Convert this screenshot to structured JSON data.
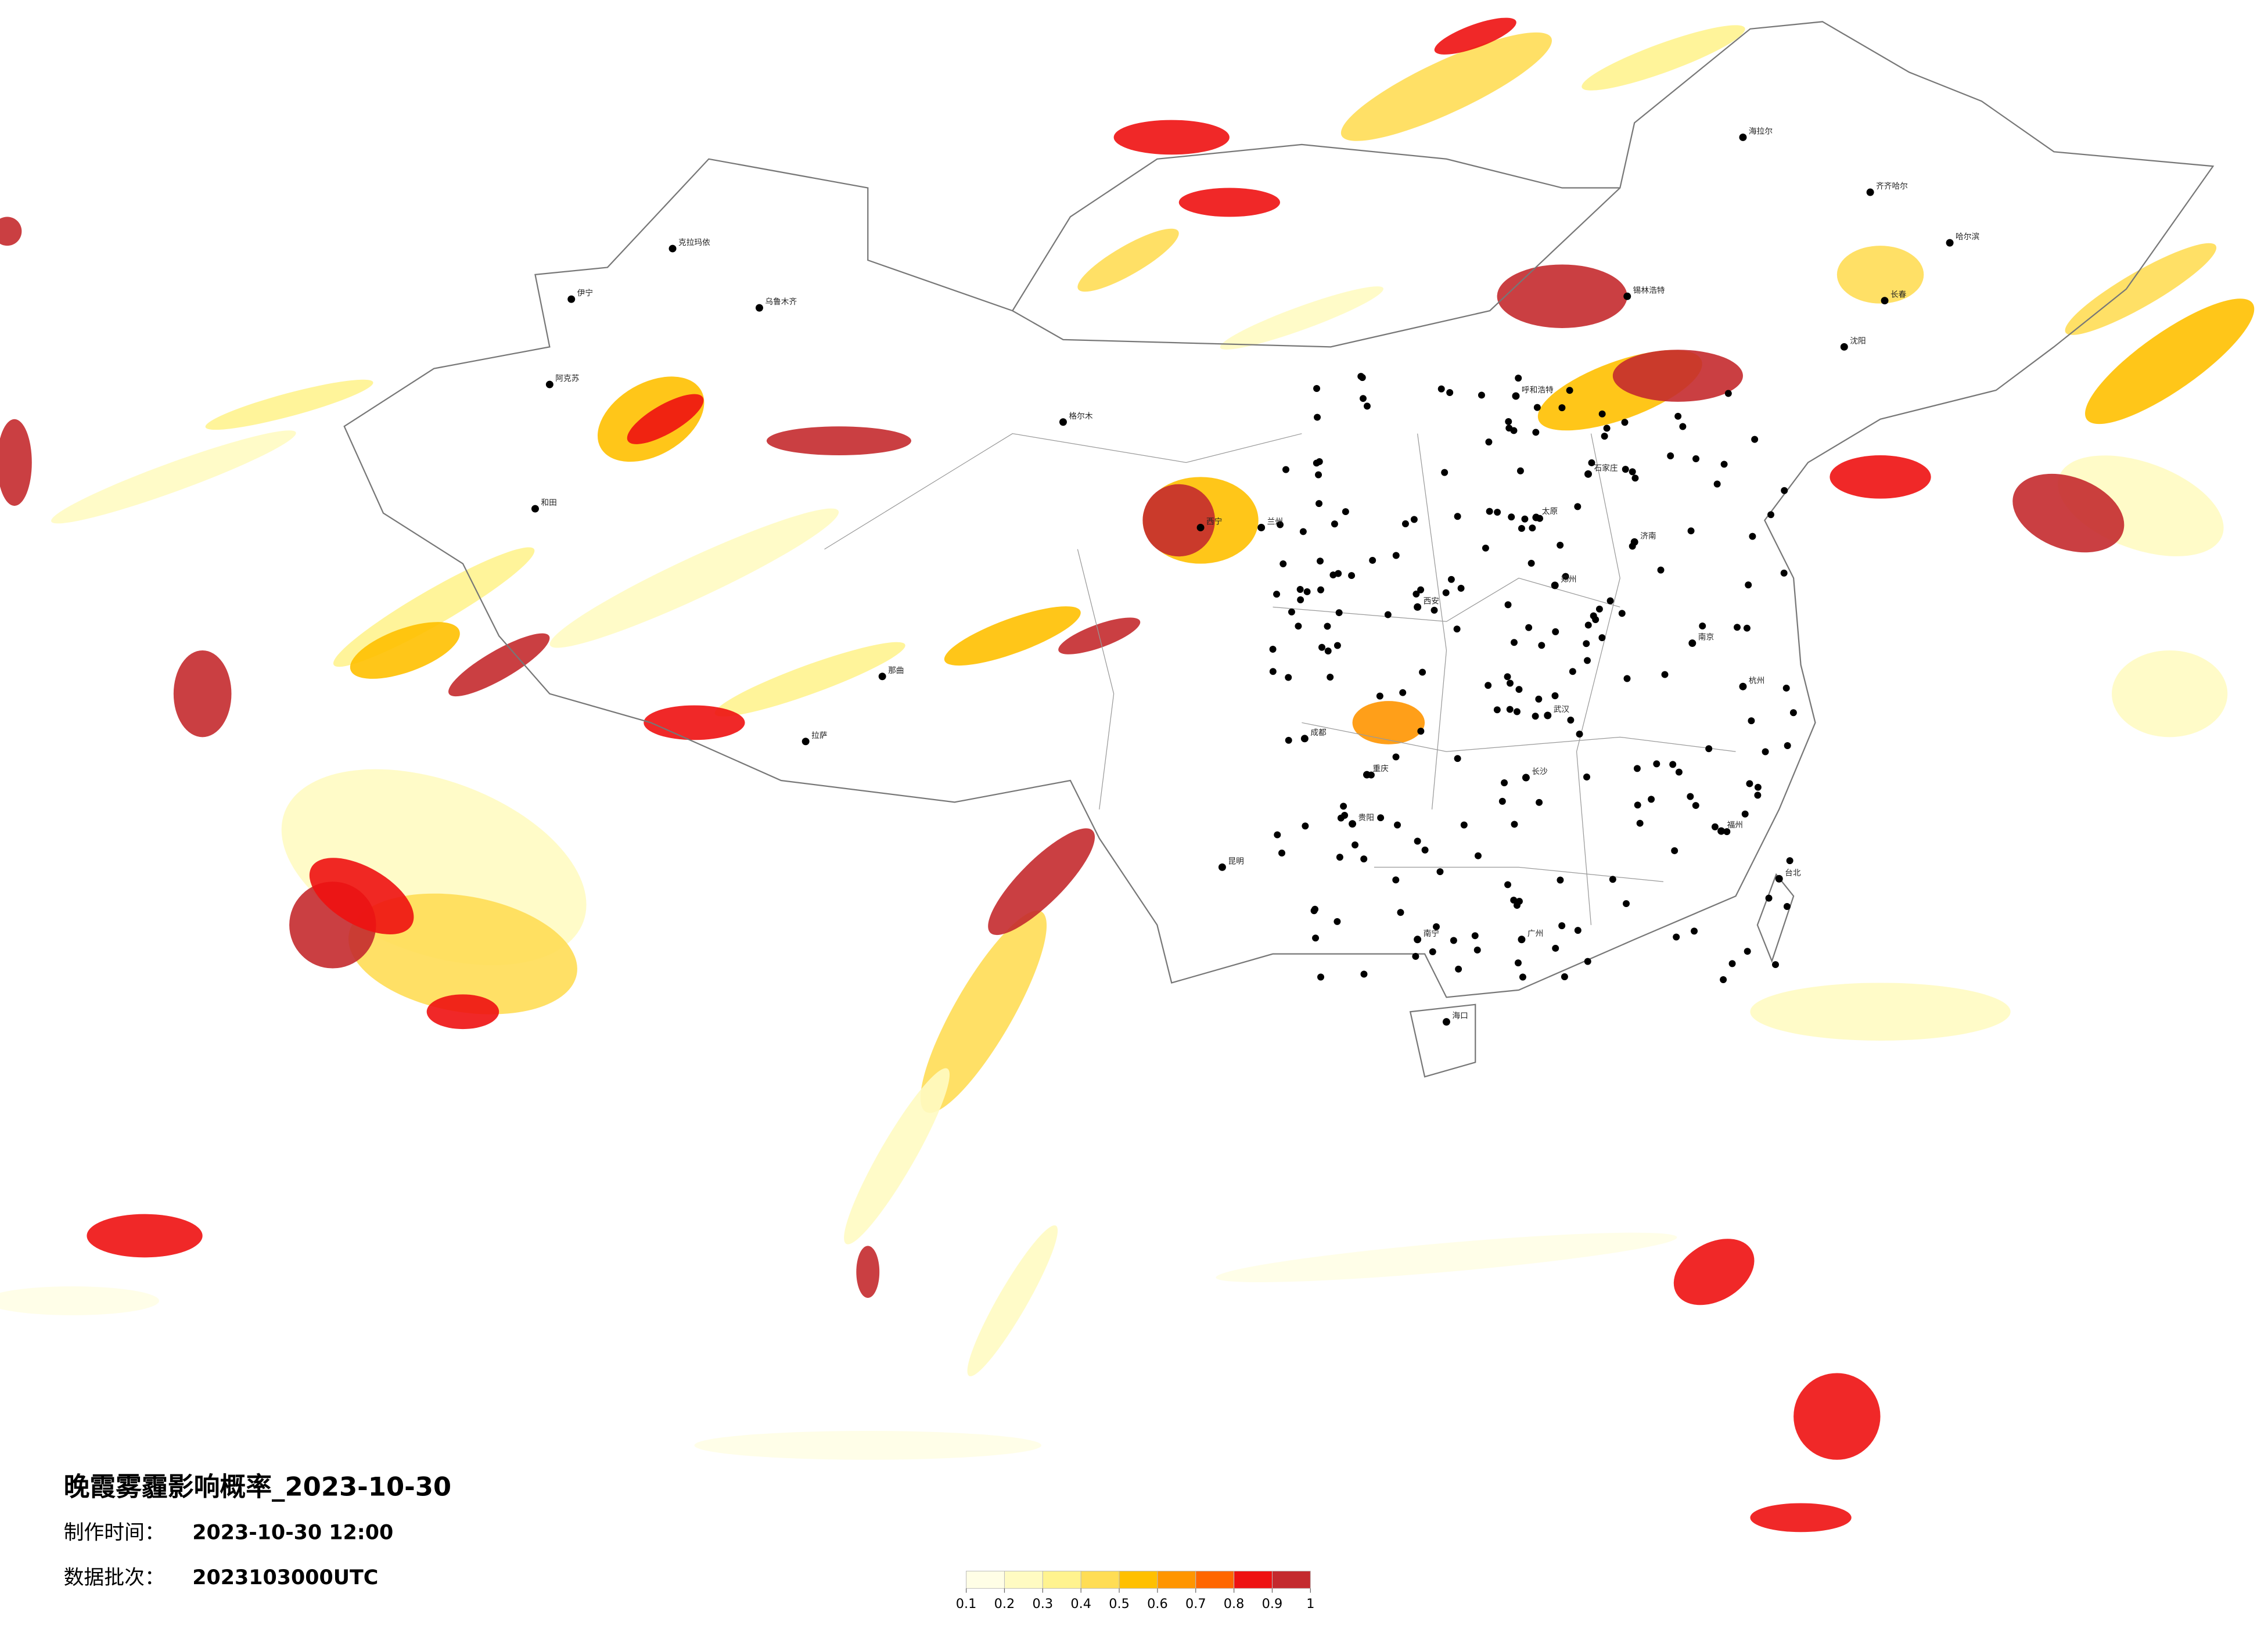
{
  "header": {
    "title": "晚霞雾霾影响概率_2023-10-30",
    "production_label": "制作时间：",
    "production_time": "2023-10-30 12:00",
    "batch_label": "数据批次：",
    "batch": "2023103000UTC"
  },
  "legend": {
    "ticks": [
      0.1,
      0.2,
      0.3,
      0.4,
      0.5,
      0.6,
      0.7,
      0.8,
      0.9,
      1
    ],
    "colors": [
      "#fffee6",
      "#fffbc2",
      "#fff38f",
      "#ffdd55",
      "#ffc000",
      "#ff9500",
      "#ff6600",
      "#ee1111",
      "#c42a2e"
    ]
  },
  "cities": [
    "海拉尔",
    "齐齐哈尔",
    "哈尔滨",
    "长春",
    "沈阳",
    "呼和浩特",
    "石家庄",
    "太原",
    "西宁",
    "拉萨",
    "成都",
    "重庆",
    "贵阳",
    "昆明",
    "南宁",
    "广州",
    "海口",
    "台北",
    "福州",
    "杭州",
    "南京",
    "武汉",
    "长沙",
    "西安",
    "兰州",
    "郑州",
    "济南",
    "乌鲁木齐",
    "和田",
    "阿克苏",
    "克拉玛依",
    "伊宁",
    "锡林浩特",
    "格尔木",
    "那曲"
  ]
}
